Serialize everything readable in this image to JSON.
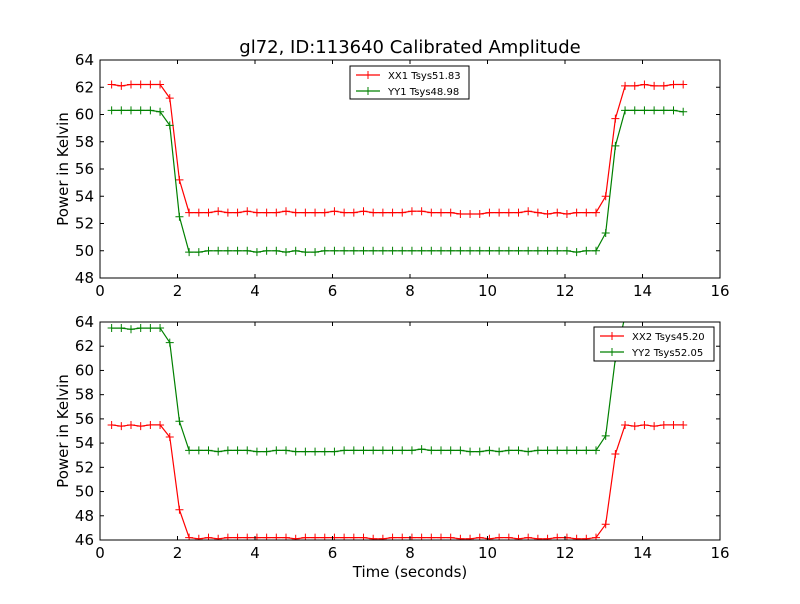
{
  "chart_data": [
    {
      "type": "line",
      "title": "gl72, ID:113640 Calibrated Amplitude",
      "xlabel": "",
      "ylabel": "Power in Kelvin",
      "xlim": [
        0,
        16
      ],
      "ylim": [
        48,
        64
      ],
      "xticks": [
        0,
        2,
        4,
        6,
        8,
        10,
        12,
        14,
        16
      ],
      "yticks": [
        48,
        50,
        52,
        54,
        56,
        58,
        60,
        62,
        64
      ],
      "grid": false,
      "legend_position": "top-center",
      "x": [
        0.3,
        0.55,
        0.8,
        1.05,
        1.3,
        1.55,
        1.8,
        2.05,
        2.3,
        2.55,
        2.8,
        3.05,
        3.3,
        3.55,
        3.8,
        4.05,
        4.3,
        4.55,
        4.8,
        5.05,
        5.3,
        5.55,
        5.8,
        6.05,
        6.3,
        6.55,
        6.8,
        7.05,
        7.3,
        7.55,
        7.8,
        8.05,
        8.3,
        8.55,
        8.8,
        9.05,
        9.3,
        9.55,
        9.8,
        10.05,
        10.3,
        10.55,
        10.8,
        11.05,
        11.3,
        11.55,
        11.8,
        12.05,
        12.3,
        12.55,
        12.8,
        13.05,
        13.3,
        13.55,
        13.8,
        14.05,
        14.3,
        14.55,
        14.8,
        15.05
      ],
      "series": [
        {
          "name": "XX1 Tsys51.83",
          "color": "#ff0000",
          "values": [
            62.2,
            62.1,
            62.2,
            62.2,
            62.2,
            62.2,
            61.2,
            55.2,
            52.8,
            52.8,
            52.8,
            52.9,
            52.8,
            52.8,
            52.9,
            52.8,
            52.8,
            52.8,
            52.9,
            52.8,
            52.8,
            52.8,
            52.8,
            52.9,
            52.8,
            52.8,
            52.9,
            52.8,
            52.8,
            52.8,
            52.8,
            52.9,
            52.9,
            52.8,
            52.8,
            52.8,
            52.7,
            52.7,
            52.7,
            52.8,
            52.8,
            52.8,
            52.8,
            52.9,
            52.8,
            52.7,
            52.8,
            52.7,
            52.8,
            52.8,
            52.8,
            54.0,
            59.7,
            62.1,
            62.1,
            62.2,
            62.1,
            62.1,
            62.2,
            62.2
          ]
        },
        {
          "name": "YY1 Tsys48.98",
          "color": "#008000",
          "values": [
            60.3,
            60.3,
            60.3,
            60.3,
            60.3,
            60.2,
            59.2,
            52.5,
            49.9,
            49.9,
            50.0,
            50.0,
            50.0,
            50.0,
            50.0,
            49.9,
            50.0,
            50.0,
            49.9,
            50.0,
            49.9,
            49.9,
            50.0,
            50.0,
            50.0,
            50.0,
            50.0,
            50.0,
            50.0,
            50.0,
            50.0,
            50.0,
            50.0,
            50.0,
            50.0,
            50.0,
            50.0,
            50.0,
            50.0,
            50.0,
            50.0,
            50.0,
            50.0,
            50.0,
            50.0,
            50.0,
            50.0,
            50.0,
            49.9,
            50.0,
            50.0,
            51.3,
            57.7,
            60.3,
            60.3,
            60.3,
            60.3,
            60.3,
            60.3,
            60.2
          ]
        }
      ]
    },
    {
      "type": "line",
      "title": "",
      "xlabel": "Time (seconds)",
      "ylabel": "Power in Kelvin",
      "xlim": [
        0,
        16
      ],
      "ylim": [
        46,
        64
      ],
      "xticks": [
        0,
        2,
        4,
        6,
        8,
        10,
        12,
        14,
        16
      ],
      "yticks": [
        46,
        48,
        50,
        52,
        54,
        56,
        58,
        60,
        62,
        64
      ],
      "grid": false,
      "legend_position": "top-right",
      "x": [
        0.3,
        0.55,
        0.8,
        1.05,
        1.3,
        1.55,
        1.8,
        2.05,
        2.3,
        2.55,
        2.8,
        3.05,
        3.3,
        3.55,
        3.8,
        4.05,
        4.3,
        4.55,
        4.8,
        5.05,
        5.3,
        5.55,
        5.8,
        6.05,
        6.3,
        6.55,
        6.8,
        7.05,
        7.3,
        7.55,
        7.8,
        8.05,
        8.3,
        8.55,
        8.8,
        9.05,
        9.3,
        9.55,
        9.8,
        10.05,
        10.3,
        10.55,
        10.8,
        11.05,
        11.3,
        11.55,
        11.8,
        12.05,
        12.3,
        12.55,
        12.8,
        13.05,
        13.3,
        13.55,
        13.8,
        14.05,
        14.3,
        14.55,
        14.8,
        15.05
      ],
      "series": [
        {
          "name": "XX2 Tsys45.20",
          "color": "#ff0000",
          "values": [
            55.5,
            55.4,
            55.5,
            55.4,
            55.5,
            55.5,
            54.5,
            48.5,
            46.2,
            46.1,
            46.2,
            46.1,
            46.2,
            46.2,
            46.2,
            46.2,
            46.2,
            46.2,
            46.2,
            46.1,
            46.2,
            46.2,
            46.2,
            46.2,
            46.2,
            46.2,
            46.2,
            46.1,
            46.1,
            46.2,
            46.2,
            46.2,
            46.2,
            46.2,
            46.2,
            46.2,
            46.1,
            46.1,
            46.2,
            46.1,
            46.2,
            46.2,
            46.1,
            46.2,
            46.1,
            46.1,
            46.2,
            46.2,
            46.1,
            46.1,
            46.2,
            47.3,
            53.1,
            55.5,
            55.4,
            55.5,
            55.4,
            55.5,
            55.5,
            55.5
          ]
        },
        {
          "name": "YY2 Tsys52.05",
          "color": "#008000",
          "values": [
            63.5,
            63.5,
            63.4,
            63.5,
            63.5,
            63.5,
            62.3,
            55.8,
            53.4,
            53.4,
            53.4,
            53.3,
            53.4,
            53.4,
            53.4,
            53.3,
            53.3,
            53.4,
            53.4,
            53.3,
            53.3,
            53.3,
            53.3,
            53.3,
            53.4,
            53.4,
            53.4,
            53.4,
            53.4,
            53.4,
            53.4,
            53.4,
            53.5,
            53.4,
            53.4,
            53.4,
            53.4,
            53.3,
            53.3,
            53.4,
            53.3,
            53.4,
            53.4,
            53.3,
            53.4,
            53.4,
            53.4,
            53.4,
            53.4,
            53.4,
            53.4,
            54.6,
            61.0,
            64.5,
            64.5,
            64.5,
            64.5,
            64.5,
            64.5,
            64.5
          ]
        }
      ]
    }
  ]
}
